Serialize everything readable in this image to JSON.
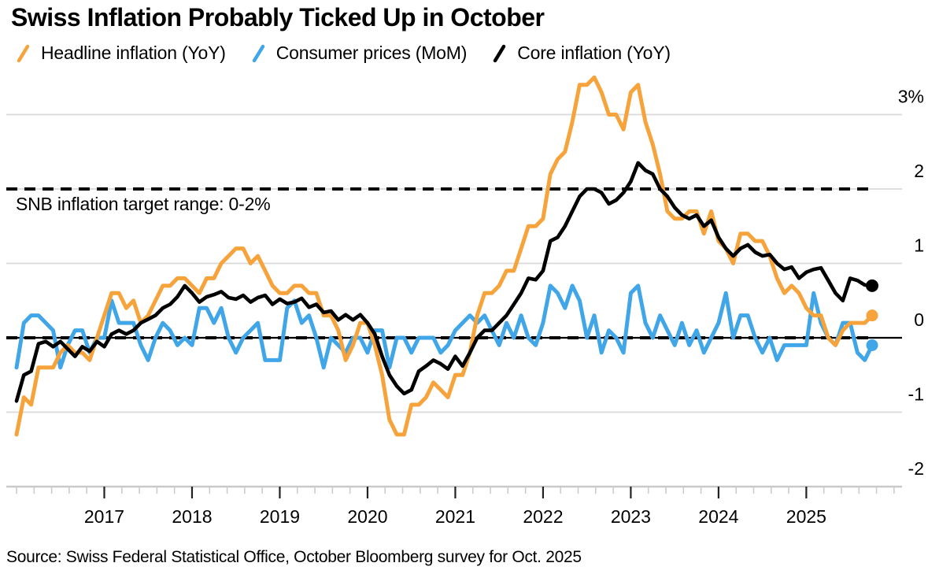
{
  "title": "Swiss Inflation Probably Ticked Up in October",
  "annotation": "SNB inflation target range: 0-2%",
  "source": "Source: Swiss Federal Statistical Office, October Bloomberg survey for Oct. 2025",
  "y_axis": {
    "values": [
      3,
      2,
      1,
      0,
      -1,
      -2
    ],
    "labels": [
      "3%",
      "2",
      "1",
      "0",
      "-1",
      "-2"
    ]
  },
  "x_axis": {
    "years": [
      "2017",
      "2018",
      "2019",
      "2020",
      "2021",
      "2022",
      "2023",
      "2024",
      "2025"
    ]
  },
  "colors": {
    "headline": "#F7A33B",
    "mom_blue": "#41A6E8",
    "core_black": "#000000",
    "gridline": "#d9d9d9",
    "axis_line": "#c9c9c9"
  },
  "chart_data": {
    "type": "line",
    "frequency": "monthly",
    "x_start": "2016-01",
    "x_end": "2025-10",
    "ylim": [
      -2,
      3.5
    ],
    "grid": true,
    "legend_position": "top",
    "target_range": [
      0,
      2
    ],
    "note": "Final point of each series is the October 2025 Bloomberg survey forecast, shown as a dot",
    "series": [
      {
        "id": "headline-yoy",
        "name": "Headline inflation (YoY)",
        "color": "#F7A33B",
        "draw_order": 1,
        "end_dot": true,
        "values": [
          -1.3,
          -0.8,
          -0.9,
          -0.4,
          -0.4,
          -0.4,
          -0.2,
          -0.1,
          -0.2,
          -0.2,
          -0.3,
          0.0,
          0.3,
          0.6,
          0.6,
          0.4,
          0.5,
          0.2,
          0.3,
          0.5,
          0.7,
          0.7,
          0.8,
          0.8,
          0.7,
          0.6,
          0.8,
          0.8,
          1.0,
          1.1,
          1.2,
          1.2,
          1.0,
          1.1,
          0.9,
          0.7,
          0.6,
          0.6,
          0.7,
          0.7,
          0.6,
          0.6,
          0.3,
          0.3,
          0.1,
          -0.3,
          -0.1,
          0.2,
          0.2,
          -0.1,
          -0.5,
          -1.1,
          -1.3,
          -1.3,
          -0.9,
          -0.9,
          -0.8,
          -0.6,
          -0.7,
          -0.8,
          -0.5,
          -0.5,
          -0.2,
          0.3,
          0.6,
          0.6,
          0.7,
          0.9,
          0.9,
          1.2,
          1.5,
          1.5,
          1.6,
          2.2,
          2.4,
          2.5,
          2.9,
          3.4,
          3.4,
          3.5,
          3.3,
          3.0,
          3.0,
          2.8,
          3.3,
          3.4,
          2.9,
          2.6,
          2.2,
          1.7,
          1.6,
          1.6,
          1.7,
          1.7,
          1.4,
          1.7,
          1.3,
          1.2,
          1.0,
          1.4,
          1.4,
          1.3,
          1.3,
          1.1,
          0.8,
          0.6,
          0.7,
          0.6,
          0.4,
          0.3,
          0.3,
          0.0,
          -0.1,
          0.1,
          0.2,
          0.2,
          0.2,
          0.3
        ]
      },
      {
        "id": "consumer-prices-mom",
        "name": "Consumer prices (MoM)",
        "color": "#41A6E8",
        "draw_order": 0,
        "end_dot": true,
        "values": [
          -0.4,
          0.2,
          0.3,
          0.3,
          0.2,
          0.1,
          -0.4,
          -0.1,
          0.1,
          0.1,
          -0.2,
          0.0,
          0.0,
          0.5,
          0.2,
          0.2,
          0.2,
          -0.1,
          -0.3,
          0.0,
          0.2,
          0.1,
          -0.1,
          0.0,
          -0.1,
          0.4,
          0.4,
          0.2,
          0.4,
          0.0,
          -0.2,
          0.0,
          0.1,
          0.2,
          -0.3,
          -0.3,
          -0.3,
          0.4,
          0.5,
          0.2,
          0.3,
          0.0,
          -0.4,
          0.0,
          -0.1,
          -0.2,
          0.0,
          0.0,
          -0.2,
          0.1,
          0.1,
          -0.4,
          0.0,
          0.0,
          -0.2,
          0.0,
          0.0,
          0.0,
          -0.2,
          -0.1,
          0.1,
          0.2,
          0.3,
          0.2,
          0.3,
          0.1,
          -0.1,
          0.2,
          0.0,
          0.3,
          0.0,
          -0.1,
          0.2,
          0.7,
          0.6,
          0.4,
          0.7,
          0.5,
          0.0,
          0.3,
          -0.2,
          0.1,
          0.0,
          -0.2,
          0.6,
          0.7,
          0.2,
          0.0,
          0.3,
          0.1,
          -0.1,
          0.2,
          -0.1,
          0.1,
          -0.2,
          0.0,
          0.2,
          0.6,
          0.0,
          0.3,
          0.3,
          0.0,
          -0.2,
          0.0,
          -0.3,
          -0.1,
          -0.1,
          -0.1,
          -0.1,
          0.6,
          0.2,
          0.0,
          -0.1,
          0.2,
          0.2,
          -0.2,
          -0.3,
          -0.1
        ]
      },
      {
        "id": "core-yoy",
        "name": "Core inflation (YoY)",
        "color": "#000000",
        "draw_order": 2,
        "end_dot": true,
        "values": [
          -0.85,
          -0.5,
          -0.45,
          -0.08,
          -0.05,
          -0.12,
          -0.05,
          -0.15,
          -0.25,
          -0.12,
          -0.18,
          -0.05,
          -0.12,
          0.05,
          0.1,
          0.05,
          0.1,
          0.2,
          0.25,
          0.3,
          0.4,
          0.45,
          0.55,
          0.7,
          0.6,
          0.48,
          0.55,
          0.58,
          0.62,
          0.54,
          0.52,
          0.57,
          0.48,
          0.54,
          0.57,
          0.45,
          0.52,
          0.46,
          0.48,
          0.53,
          0.41,
          0.45,
          0.34,
          0.36,
          0.24,
          0.31,
          0.24,
          0.31,
          0.2,
          0.05,
          -0.25,
          -0.5,
          -0.65,
          -0.75,
          -0.7,
          -0.45,
          -0.38,
          -0.3,
          -0.35,
          -0.42,
          -0.25,
          -0.38,
          -0.2,
          0.0,
          0.1,
          0.1,
          0.2,
          0.3,
          0.45,
          0.6,
          0.8,
          0.78,
          0.9,
          1.3,
          1.35,
          1.5,
          1.7,
          1.9,
          2.0,
          2.0,
          1.95,
          1.8,
          1.85,
          1.95,
          2.1,
          2.35,
          2.25,
          2.2,
          2.0,
          1.9,
          1.75,
          1.65,
          1.6,
          1.65,
          1.5,
          1.58,
          1.35,
          1.2,
          1.1,
          1.2,
          1.25,
          1.15,
          1.1,
          1.12,
          1.0,
          0.92,
          0.95,
          0.8,
          0.88,
          0.92,
          0.94,
          0.77,
          0.6,
          0.5,
          0.8,
          0.77,
          0.71,
          0.7
        ]
      }
    ]
  }
}
